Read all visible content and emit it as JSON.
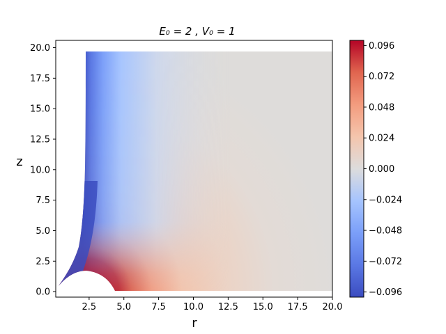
{
  "chart_data": {
    "type": "heatmap",
    "title": "E₀ = 2 , V₀ = 1",
    "xlabel": "r",
    "ylabel": "z",
    "xlim": [
      0,
      20
    ],
    "ylim": [
      0,
      20
    ],
    "xticks": [
      "2.5",
      "5.0",
      "7.5",
      "10.0",
      "12.5",
      "15.0",
      "17.5",
      "20.0"
    ],
    "yticks": [
      "0.0",
      "2.5",
      "5.0",
      "7.5",
      "10.0",
      "12.5",
      "15.0",
      "17.5",
      "20.0"
    ],
    "colorbar": {
      "colormap": "coolwarm",
      "range": [
        -0.1,
        0.1
      ],
      "ticks": [
        "−0.096",
        "−0.072",
        "−0.048",
        "−0.024",
        "0.000",
        "0.024",
        "0.048",
        "0.072",
        "0.096"
      ]
    },
    "features": {
      "domain_boundary": "left edge curve from (0.2, 0.4) rising to r≈2.2 at z=20; excluded arc cap from r≈0.2 to r≈4.5 peaking near z≈1.7 at r≈2.2",
      "negative_region": "strong negative (blue) values along the left boundary, fading to ~0 by r≈8",
      "positive_region": "strong positive (red) values just outside the arc cap near r≈3–5, z≈0–2, fading outward in semicircular bands to ~0 by r≈15"
    }
  }
}
